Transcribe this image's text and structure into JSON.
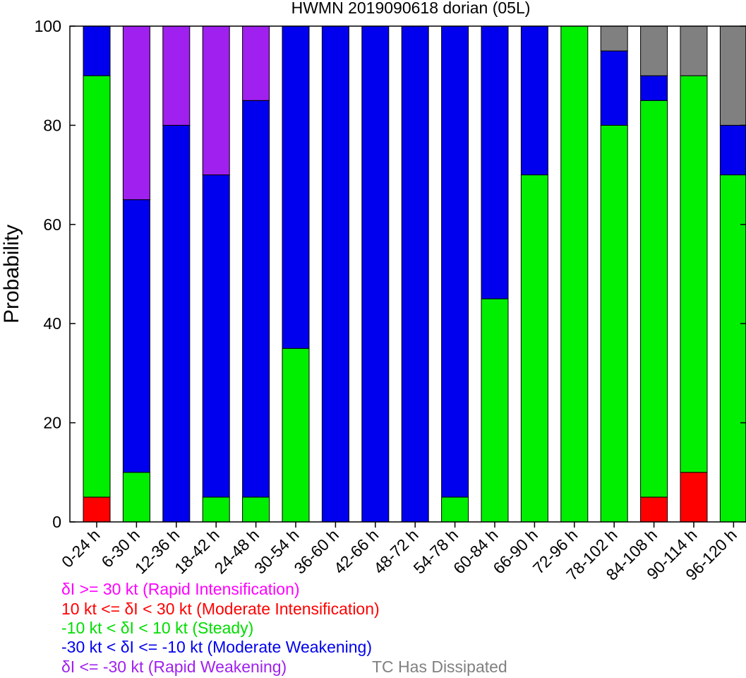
{
  "chart_data": {
    "type": "bar",
    "stacked": true,
    "title": "HWMN 2019090618 dorian (05L)",
    "xlabel": "",
    "ylabel": "Probability",
    "ylim": [
      0,
      100
    ],
    "yticks": [
      "0",
      "20",
      "40",
      "60",
      "80",
      "100"
    ],
    "grid": false,
    "categories": [
      "0-24 h",
      "6-30 h",
      "12-36 h",
      "18-42 h",
      "24-48 h",
      "30-54 h",
      "36-60 h",
      "42-66 h",
      "48-72 h",
      "54-78 h",
      "60-84 h",
      "66-90 h",
      "72-96 h",
      "78-102 h",
      "84-108 h",
      "90-114 h",
      "96-120 h"
    ],
    "series": [
      {
        "key": "moderate_intensification",
        "color": "#ff0000",
        "values": [
          5,
          0,
          0,
          0,
          0,
          0,
          0,
          0,
          0,
          0,
          0,
          0,
          0,
          0,
          5,
          10,
          0
        ]
      },
      {
        "key": "steady",
        "color": "#00ee00",
        "values": [
          85,
          10,
          0,
          5,
          5,
          35,
          0,
          0,
          0,
          5,
          45,
          70,
          100,
          80,
          80,
          80,
          70
        ]
      },
      {
        "key": "moderate_weakening",
        "color": "#0000ee",
        "values": [
          10,
          55,
          80,
          65,
          80,
          65,
          100,
          100,
          100,
          95,
          55,
          30,
          0,
          15,
          5,
          0,
          10
        ]
      },
      {
        "key": "rapid_weakening",
        "color": "#a020f0",
        "values": [
          0,
          35,
          20,
          30,
          15,
          0,
          0,
          0,
          0,
          0,
          0,
          0,
          0,
          0,
          0,
          0,
          0
        ]
      },
      {
        "key": "dissipated",
        "color": "#808080",
        "values": [
          0,
          0,
          0,
          0,
          0,
          0,
          0,
          0,
          0,
          0,
          0,
          0,
          0,
          5,
          10,
          10,
          20
        ]
      },
      {
        "key": "rapid_intensification",
        "color": "#ff00ff",
        "values": [
          0,
          0,
          0,
          0,
          0,
          0,
          0,
          0,
          0,
          0,
          0,
          0,
          0,
          0,
          0,
          0,
          0
        ]
      }
    ],
    "legend": [
      {
        "text": "δI >= 30 kt (Rapid Intensification)",
        "color": "#ff00ff"
      },
      {
        "text": "10 kt <= δI < 30 kt (Moderate Intensification)",
        "color": "#ff0000"
      },
      {
        "text": "-10 kt < δI < 10 kt (Steady)",
        "color": "#00dd00"
      },
      {
        "text": "-30 kt < δI <= -10 kt (Moderate Weakening)",
        "color": "#0000ee"
      },
      {
        "text": "δI <= -30 kt (Rapid Weakening)",
        "color": "#a020f0"
      },
      {
        "text": "TC Has Dissipated",
        "color": "#808080"
      }
    ]
  }
}
